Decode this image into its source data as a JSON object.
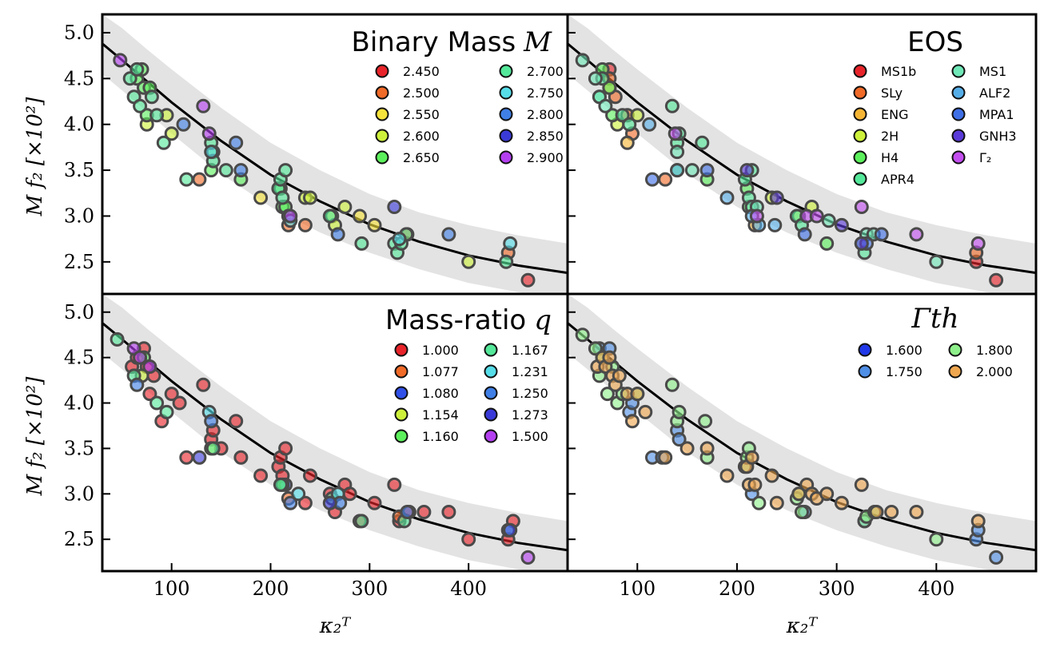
{
  "figure": {
    "shared_xlabel": "κ₂ᵀ",
    "shared_ylabel": "M f₂ [×10²]",
    "x_ticks": [
      100,
      200,
      300,
      400
    ],
    "y_ticks": [
      "2.5",
      "3.0",
      "3.5",
      "4.0",
      "4.5",
      "5.0"
    ]
  },
  "chart_data": [
    {
      "type": "scatter",
      "title": "Binary Mass M",
      "title_text": "Binary Mass",
      "title_math": "M",
      "xlabel": "κ₂ᵀ",
      "ylabel": "M f₂ [×10²]",
      "xlim": [
        30,
        500
      ],
      "ylim": [
        2.15,
        5.2
      ],
      "grid": false,
      "legend_placement": "top-right",
      "fit_curve": {
        "label": "",
        "x": [
          30,
          50,
          75,
          100,
          150,
          200,
          250,
          300,
          350,
          400,
          450,
          500
        ],
        "y": [
          4.88,
          4.7,
          4.47,
          4.24,
          3.82,
          3.45,
          3.16,
          2.91,
          2.72,
          2.57,
          2.46,
          2.38
        ]
      },
      "confidence_band": {
        "x": [
          30,
          50,
          75,
          100,
          150,
          200,
          250,
          300,
          350,
          400,
          450,
          500
        ],
        "upper": [
          5.2,
          5.05,
          4.82,
          4.6,
          4.18,
          3.8,
          3.5,
          3.24,
          3.04,
          2.9,
          2.79,
          2.7
        ],
        "lower": [
          4.55,
          4.37,
          4.14,
          3.9,
          3.46,
          3.1,
          2.82,
          2.6,
          2.42,
          2.27,
          2.17,
          2.1
        ]
      },
      "series": [
        {
          "name": "2.450",
          "color": "#e8242a",
          "x": [
            460
          ],
          "y": [
            2.3
          ]
        },
        {
          "name": "2.500",
          "color": "#f06a28",
          "x": [
            128,
            218,
            235,
            338,
            440
          ],
          "y": [
            3.4,
            2.9,
            2.9,
            2.8,
            2.6
          ]
        },
        {
          "name": "2.550",
          "color": "#f5e23a",
          "x": [
            190,
            290,
            305
          ],
          "y": [
            3.2,
            3.0,
            2.9
          ]
        },
        {
          "name": "2.600",
          "color": "#cdf03a",
          "x": [
            75,
            95,
            100,
            235,
            240,
            262,
            265,
            275,
            400
          ],
          "y": [
            4.0,
            4.1,
            3.9,
            3.2,
            3.2,
            3.0,
            2.9,
            3.1,
            2.5
          ]
        },
        {
          "name": "2.650",
          "color": "#5cf05c",
          "x": [
            65,
            70,
            72,
            75,
            78,
            140,
            142,
            170,
            210,
            212,
            215,
            218
          ],
          "y": [
            4.5,
            4.6,
            4.4,
            4.1,
            4.4,
            3.5,
            3.7,
            3.4,
            3.3,
            3.1,
            3.1,
            3.0
          ]
        },
        {
          "name": "2.700",
          "color": "#54e89a",
          "x": [
            58,
            62,
            65,
            68,
            80,
            85,
            92,
            115,
            140,
            142,
            155,
            208,
            210,
            212,
            215,
            260,
            292,
            325,
            328,
            332,
            337,
            438
          ],
          "y": [
            4.5,
            4.3,
            4.6,
            4.2,
            4.3,
            4.1,
            3.8,
            3.4,
            3.8,
            3.6,
            3.5,
            3.3,
            3.4,
            3.2,
            3.5,
            3.0,
            2.7,
            2.7,
            2.6,
            2.7,
            2.8,
            2.5
          ]
        },
        {
          "name": "2.750",
          "color": "#56dde8",
          "x": [
            140,
            220,
            330,
            442
          ],
          "y": [
            3.7,
            2.95,
            2.75,
            2.7
          ]
        },
        {
          "name": "2.800",
          "color": "#3f7fe6",
          "x": [
            112,
            165,
            170,
            268,
            380
          ],
          "y": [
            4.0,
            3.8,
            3.5,
            2.8,
            2.8
          ]
        },
        {
          "name": "2.850",
          "color": "#3a3ad8",
          "x": [
            325
          ],
          "y": [
            3.1
          ]
        },
        {
          "name": "2.900",
          "color": "#b43ff0",
          "x": [
            48,
            132,
            138,
            220
          ],
          "y": [
            4.7,
            4.2,
            3.9,
            3.0
          ]
        }
      ]
    },
    {
      "type": "scatter",
      "title": "EOS",
      "title_text": "EOS",
      "title_math": "",
      "xlabel": "κ₂ᵀ",
      "ylabel": "",
      "xlim": [
        30,
        500
      ],
      "ylim": [
        2.15,
        5.2
      ],
      "grid": false,
      "legend_placement": "top-right",
      "series": [
        {
          "name": "MS1b",
          "color": "#e8242a",
          "x": [
            460,
            440,
            72
          ],
          "y": [
            2.3,
            2.5,
            4.6
          ]
        },
        {
          "name": "SLy",
          "color": "#f06a28",
          "x": [
            72,
            78,
            90,
            95,
            128,
            440
          ],
          "y": [
            4.5,
            4.3,
            4.1,
            3.9,
            3.4,
            2.6
          ]
        },
        {
          "name": "ENG",
          "color": "#f5b534",
          "x": [
            72,
            90,
            218
          ],
          "y": [
            4.4,
            3.8,
            2.9
          ]
        },
        {
          "name": "2H",
          "color": "#cdf03a",
          "x": [
            80,
            100,
            235,
            262,
            275
          ],
          "y": [
            4.0,
            4.1,
            3.2,
            3.0,
            3.1
          ]
        },
        {
          "name": "H4",
          "color": "#5cf05c",
          "x": [
            65,
            72,
            75,
            140,
            170,
            210,
            212,
            290
          ],
          "y": [
            4.6,
            4.4,
            4.1,
            3.5,
            3.4,
            3.3,
            3.1,
            2.7
          ]
        },
        {
          "name": "APR4",
          "color": "#54e89a",
          "x": [
            62,
            65,
            85,
            92,
            135,
            140,
            142,
            165,
            208,
            212,
            215,
            260,
            265,
            325,
            328
          ],
          "y": [
            4.3,
            4.5,
            4.1,
            4.0,
            4.2,
            3.8,
            3.9,
            3.8,
            3.4,
            3.2,
            3.5,
            3.0,
            2.9,
            2.7,
            2.6
          ]
        },
        {
          "name": "MS1",
          "color": "#70e8b8",
          "x": [
            45,
            58,
            62,
            68,
            140,
            155,
            215,
            220,
            292,
            330,
            337,
            400
          ],
          "y": [
            4.7,
            4.5,
            4.3,
            4.2,
            3.7,
            3.5,
            3.1,
            3.1,
            2.95,
            2.8,
            2.8,
            2.5
          ]
        },
        {
          "name": "ALF2",
          "color": "#56aee8",
          "x": [
            112,
            140,
            190,
            215,
            222,
            238
          ],
          "y": [
            4.0,
            3.5,
            3.2,
            3.0,
            2.9,
            2.9
          ]
        },
        {
          "name": "MPA1",
          "color": "#3f6fe6",
          "x": [
            115,
            170,
            268,
            330,
            345
          ],
          "y": [
            3.4,
            3.5,
            2.8,
            2.7,
            2.8
          ]
        },
        {
          "name": "GNH3",
          "color": "#5a3ad8",
          "x": [
            210,
            240,
            305,
            325
          ],
          "y": [
            3.5,
            3.2,
            2.9,
            2.7
          ]
        },
        {
          "name": "Γ₂",
          "color": "#c44ff0",
          "x": [
            138,
            220,
            270,
            280,
            325,
            380,
            442
          ],
          "y": [
            3.9,
            3.0,
            3.0,
            3.0,
            3.1,
            2.8,
            2.7
          ]
        }
      ]
    },
    {
      "type": "scatter",
      "title": "Mass-ratio q",
      "title_text": "Mass-ratio",
      "title_math": "q",
      "xlabel": "κ₂ᵀ",
      "ylabel": "M f₂ [×10²]",
      "xlim": [
        30,
        500
      ],
      "ylim": [
        2.15,
        5.2
      ],
      "grid": false,
      "legend_placement": "top-right",
      "series": [
        {
          "name": "1.000",
          "color": "#e8242a",
          "x": [
            60,
            65,
            72,
            75,
            78,
            82,
            90,
            100,
            108,
            115,
            132,
            140,
            142,
            150,
            165,
            170,
            190,
            208,
            210,
            212,
            215,
            235,
            240,
            260,
            265,
            275,
            280,
            290,
            305,
            325,
            330,
            340,
            355,
            380,
            400,
            440,
            445
          ],
          "y": [
            4.4,
            4.5,
            4.6,
            4.4,
            4.1,
            4.3,
            3.8,
            4.1,
            4.0,
            3.4,
            4.2,
            3.6,
            3.7,
            3.5,
            3.8,
            3.4,
            3.2,
            3.3,
            3.4,
            3.2,
            3.5,
            2.9,
            3.2,
            3.0,
            2.8,
            3.1,
            3.0,
            2.7,
            2.9,
            3.1,
            2.7,
            2.8,
            2.8,
            2.8,
            2.5,
            2.5,
            2.7
          ]
        },
        {
          "name": "1.077",
          "color": "#f06a28",
          "x": [
            218,
            330
          ],
          "y": [
            2.95,
            2.75
          ]
        },
        {
          "name": "1.080",
          "color": "#3050e8",
          "x": [
            215
          ],
          "y": [
            3.1
          ]
        },
        {
          "name": "1.154",
          "color": "#cdf03a",
          "x": [
            70,
            140
          ],
          "y": [
            4.3,
            3.5
          ]
        },
        {
          "name": "1.160",
          "color": "#5cf05c",
          "x": [
            72,
            212
          ],
          "y": [
            4.5,
            3.1
          ]
        },
        {
          "name": "1.167",
          "color": "#54e89a",
          "x": [
            45,
            62,
            85,
            95,
            142,
            210,
            262,
            292,
            335
          ],
          "y": [
            4.7,
            4.3,
            4.0,
            3.9,
            3.5,
            3.1,
            2.95,
            2.7,
            2.7
          ]
        },
        {
          "name": "1.231",
          "color": "#56dde8",
          "x": [
            138,
            228,
            268,
            440
          ],
          "y": [
            3.9,
            3.0,
            3.0,
            2.6
          ]
        },
        {
          "name": "1.250",
          "color": "#3f7fe6",
          "x": [
            65,
            140,
            220,
            270,
            338
          ],
          "y": [
            4.2,
            3.8,
            2.9,
            2.9,
            2.8
          ]
        },
        {
          "name": "1.273",
          "color": "#3a3ad8",
          "x": [
            128,
            260,
            442
          ],
          "y": [
            3.4,
            2.9,
            2.6
          ]
        },
        {
          "name": "1.500",
          "color": "#b43ff0",
          "x": [
            62,
            68,
            78,
            460
          ],
          "y": [
            4.6,
            4.5,
            4.4,
            2.3
          ]
        }
      ]
    },
    {
      "type": "scatter",
      "title": "Γth",
      "title_text": "",
      "title_math": "Γth",
      "xlabel": "κ₂ᵀ",
      "ylabel": "",
      "xlim": [
        30,
        500
      ],
      "ylim": [
        2.15,
        5.2
      ],
      "grid": false,
      "legend_placement": "top-right",
      "series": [
        {
          "name": "1.600",
          "color": "#2038e8",
          "x": [],
          "y": []
        },
        {
          "name": "1.750",
          "color": "#4f8fe6",
          "x": [
            62,
            72,
            92,
            95,
            115,
            125,
            140,
            142,
            215,
            268,
            328,
            440,
            442,
            460
          ],
          "y": [
            4.6,
            4.6,
            3.9,
            4.0,
            3.4,
            3.4,
            3.7,
            3.6,
            3.0,
            2.8,
            2.7,
            2.5,
            2.6,
            2.3
          ]
        },
        {
          "name": "1.800",
          "color": "#8ef08a",
          "x": [
            45,
            58,
            62,
            65,
            70,
            75,
            80,
            85,
            100,
            135,
            140,
            142,
            168,
            170,
            208,
            210,
            212,
            222,
            260,
            262,
            265,
            328,
            330,
            338,
            400
          ],
          "y": [
            4.75,
            4.6,
            4.3,
            4.5,
            4.1,
            4.4,
            4.0,
            4.1,
            4.1,
            4.2,
            3.8,
            3.9,
            3.8,
            3.4,
            3.3,
            3.4,
            3.5,
            2.9,
            2.95,
            3.0,
            2.8,
            2.7,
            2.75,
            2.8,
            2.5
          ]
        },
        {
          "name": "2.000",
          "color": "#f0a850",
          "x": [
            60,
            65,
            68,
            72,
            75,
            78,
            82,
            90,
            95,
            100,
            108,
            128,
            150,
            170,
            190,
            210,
            212,
            215,
            218,
            235,
            240,
            262,
            270,
            275,
            280,
            290,
            305,
            325,
            340,
            355,
            380,
            442
          ],
          "y": [
            4.4,
            4.5,
            4.4,
            4.5,
            4.3,
            4.2,
            4.3,
            4.1,
            3.8,
            4.1,
            3.9,
            3.4,
            3.5,
            3.5,
            3.2,
            3.3,
            3.1,
            3.4,
            3.1,
            3.2,
            2.9,
            3.0,
            3.1,
            3.0,
            2.95,
            3.0,
            2.9,
            3.1,
            2.8,
            2.8,
            2.8,
            2.7
          ]
        }
      ]
    }
  ]
}
